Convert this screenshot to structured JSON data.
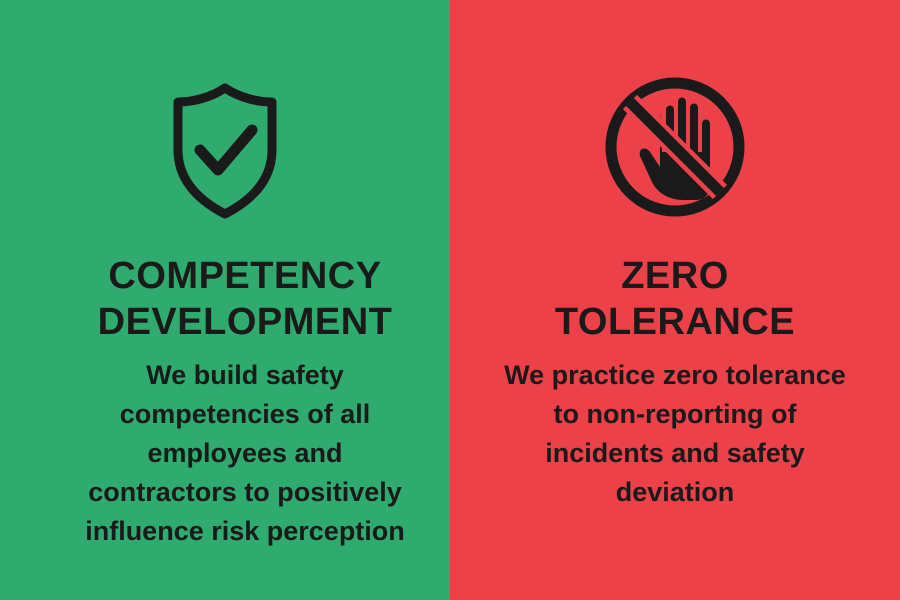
{
  "colors": {
    "left_background": "#2fab6f",
    "right_background": "#ec4149",
    "text": "#1a1a1a"
  },
  "left": {
    "icon": "shield-check-icon",
    "title_lines": [
      "COMPETENCY",
      "DEVELOPMENT"
    ],
    "body_lines": [
      "We build safety",
      "competencies of all",
      "employees and",
      "contractors to positively",
      "influence risk perception"
    ]
  },
  "right": {
    "icon": "no-hand-icon",
    "title_lines": [
      "ZERO",
      "TOLERANCE"
    ],
    "body_lines": [
      "We practice zero tolerance",
      "to non-reporting of",
      "incidents and safety",
      "deviation"
    ]
  }
}
